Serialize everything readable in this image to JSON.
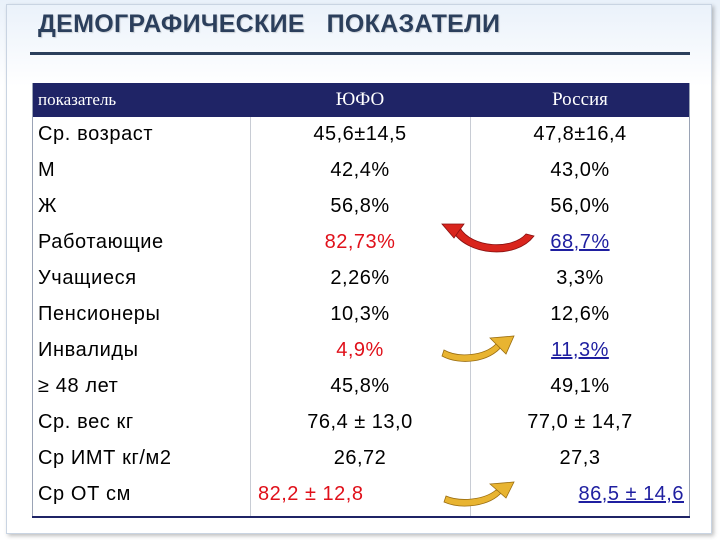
{
  "title": "ДЕМОГРАФИЧЕСКИЕ   ПОКАЗАТЕЛИ",
  "header": {
    "label": "показатель",
    "yufo": "ЮФО",
    "russia": "Россия"
  },
  "rows": [
    {
      "label": "Ср. возраст",
      "yufo": "45,6±14,5",
      "russia": "47,8±16,4"
    },
    {
      "label": "М",
      "yufo": "42,4%",
      "russia": "43,0%"
    },
    {
      "label": "Ж",
      "yufo": "56,8%",
      "russia": "56,0%"
    },
    {
      "label": "Работающие",
      "yufo": "82,73%",
      "russia": "68,7%"
    },
    {
      "label": "Учащиеся",
      "yufo": "2,26%",
      "russia": "3,3%"
    },
    {
      "label": "Пенсионеры",
      "yufo": "10,3%",
      "russia": "12,6%"
    },
    {
      "label": "Инвалиды",
      "yufo": "4,9%",
      "russia": "11,3%"
    },
    {
      "label": "≥ 48 лет",
      "yufo": "45,8%",
      "russia": "49,1%"
    },
    {
      "label": "Ср. вес кг",
      "yufo": "76,4 ± 13,0",
      "russia": "77,0 ± 14,7"
    },
    {
      "label": "Ср ИМТ кг/м2",
      "yufo": "26,72",
      "russia": "27,3"
    },
    {
      "label": "Ср ОТ см",
      "yufo": "82,2 ± 12,8",
      "russia": "86,5 ± 14,6"
    }
  ],
  "colors": {
    "header_bg": "#1f2466",
    "highlight_red": "#e0101a",
    "highlight_blue": "#1f1fa0",
    "arrow_red": "#d9251d",
    "arrow_gold": "#e8b431"
  },
  "icons": [
    "curved-arrow-icon"
  ]
}
